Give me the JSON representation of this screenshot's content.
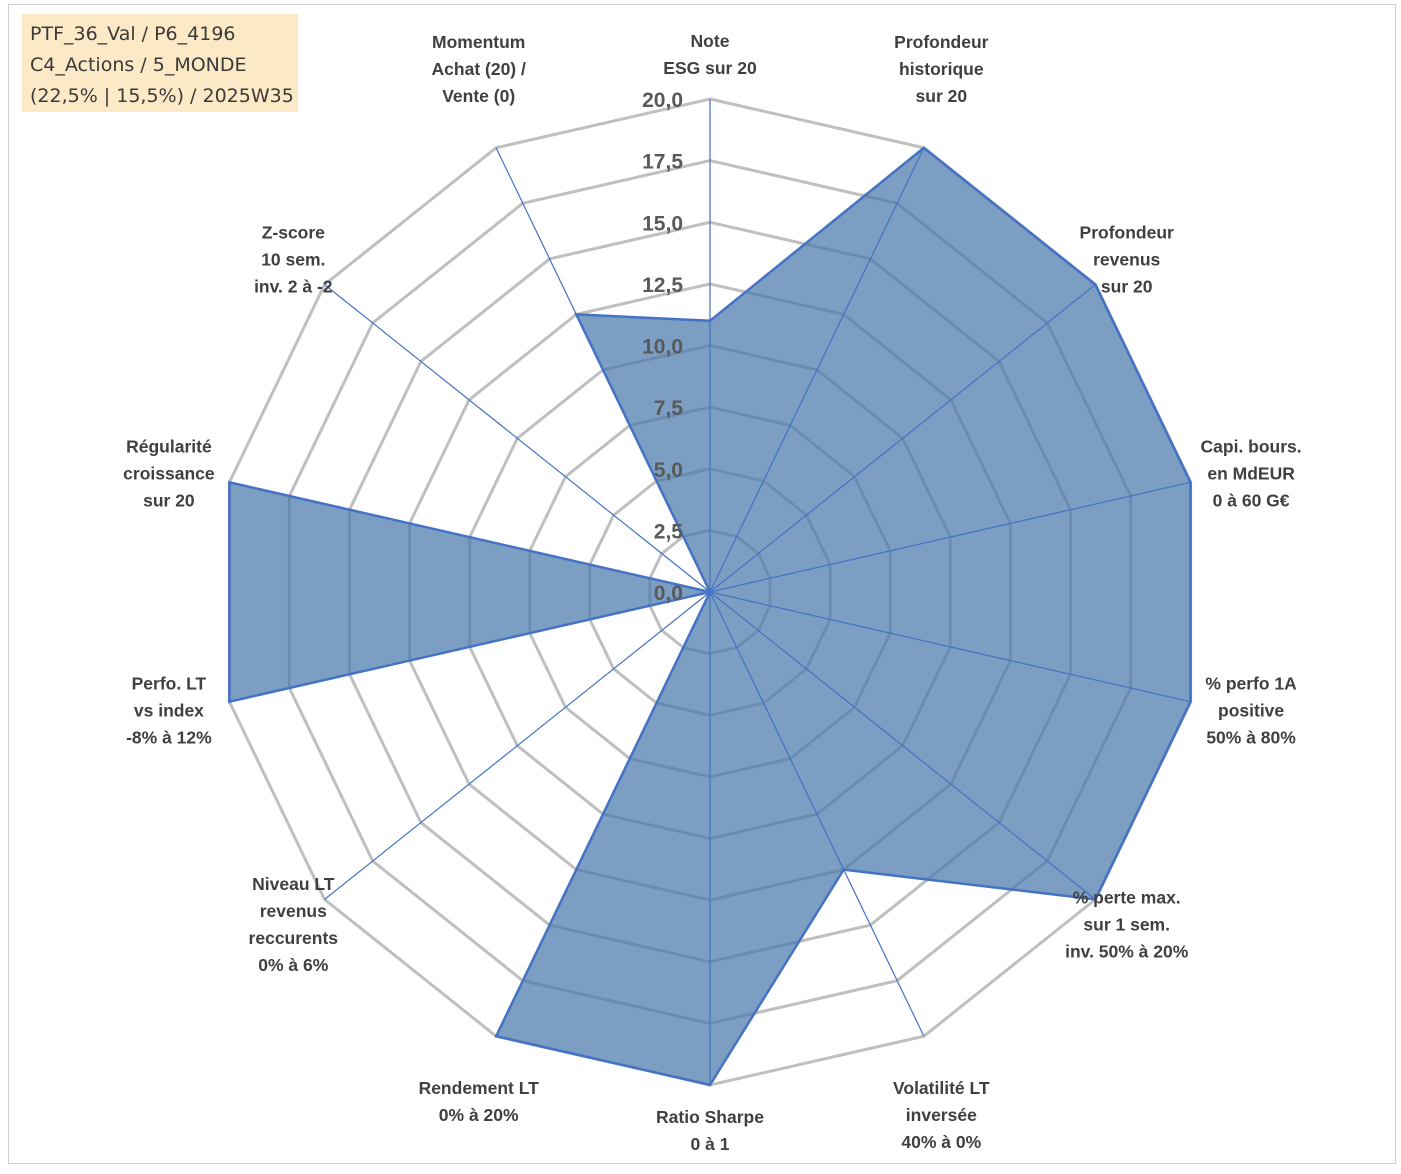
{
  "info_box": {
    "line1": "PTF_36_Val / P6_4196",
    "line2": "C4_Actions / 5_MONDE",
    "line3": "(22,5% | 15,5%) / 2025W35"
  },
  "colors": {
    "fill": "#4a79ab",
    "fill_opacity": 0.72,
    "stroke": "#4472c4",
    "grid": "#bfbfbf",
    "axis": "#4472c4"
  },
  "chart_data": {
    "type": "radar",
    "title": "",
    "rlim": [
      0,
      20
    ],
    "rticks": [
      "0,0",
      "2,5",
      "5,0",
      "7,5",
      "10,0",
      "12,5",
      "15,0",
      "17,5",
      "20,0"
    ],
    "grid": true,
    "categories": [
      [
        "Note",
        "ESG sur 20"
      ],
      [
        "Profondeur",
        "historique",
        "sur 20"
      ],
      [
        "Profondeur",
        "revenus",
        "sur 20"
      ],
      [
        "Capi. bours.",
        "en MdEUR",
        "0 à 60 G€"
      ],
      [
        "% perfo 1A",
        "positive",
        "50% à 80%"
      ],
      [
        "% perte max.",
        "sur 1 sem.",
        "inv. 50% à 20%"
      ],
      [
        "Volatilité LT",
        "inversée",
        "40% à 0%"
      ],
      [
        "Ratio Sharpe",
        "0 à 1"
      ],
      [
        "Rendement LT",
        "0% à 20%"
      ],
      [
        "Niveau LT",
        "revenus",
        "reccurents",
        "0% à 6%"
      ],
      [
        "Perfo. LT",
        "vs index",
        "-8% à 12%"
      ],
      [
        "Régularité",
        "croissance",
        "sur 20"
      ],
      [
        "Z-score",
        "10 sem.",
        "inv. 2 à -2"
      ],
      [
        "Momentum",
        "Achat (20) /",
        "Vente (0)"
      ]
    ],
    "series": [
      {
        "values": [
          11,
          20,
          20,
          20,
          20,
          20,
          12.5,
          20,
          20,
          0,
          20,
          20,
          0,
          12.5
        ]
      }
    ]
  }
}
